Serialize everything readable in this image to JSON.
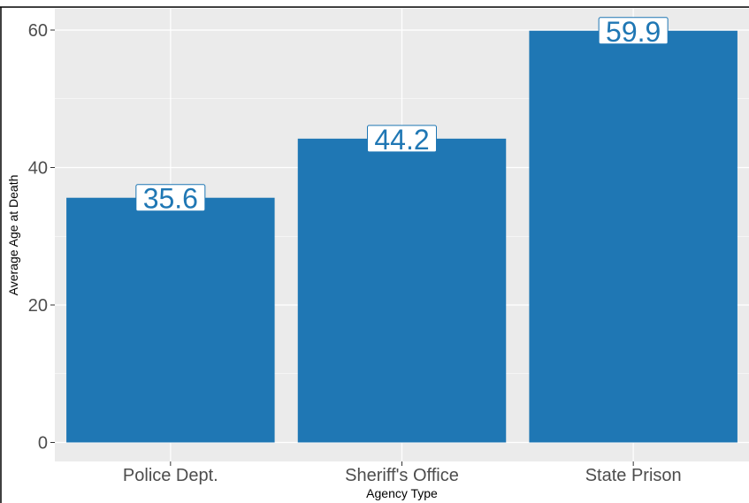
{
  "chart_data": {
    "type": "bar",
    "title": "",
    "xlabel": "Agency Type",
    "ylabel": "Average Age at Death",
    "categories": [
      "Police Dept.",
      "Sheriff's Office",
      "State Prison"
    ],
    "values": [
      35.6,
      44.2,
      59.9
    ],
    "data_labels": [
      "35.6",
      "44.2",
      "59.9"
    ],
    "ylim": [
      0,
      63.5
    ],
    "yticks": [
      0,
      20,
      40,
      60
    ],
    "ytick_labels": [
      "0",
      "20",
      "40",
      "60"
    ],
    "grid": true,
    "legend": "none",
    "colors": {
      "bar": "#1f77b4",
      "panel_background": "#ebebeb",
      "grid": "#ffffff",
      "label_text": "#1f77b4",
      "label_border": "#1f77b4",
      "label_fill": "#ffffff"
    }
  }
}
